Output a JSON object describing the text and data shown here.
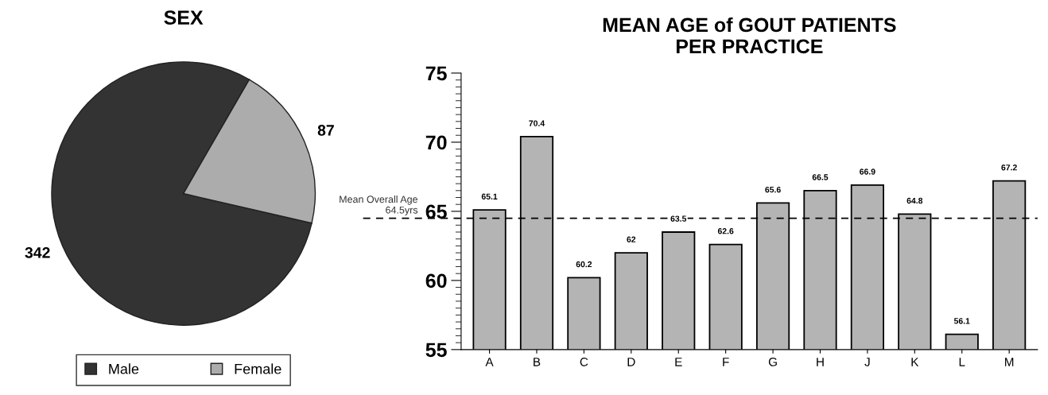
{
  "chart_data": [
    {
      "type": "pie",
      "title": "SEX",
      "categories": [
        "Male",
        "Female"
      ],
      "values": [
        342,
        87
      ],
      "colors": [
        "#333333",
        "#acacac"
      ],
      "data_labels": true,
      "legend": "bottom"
    },
    {
      "type": "bar",
      "title": "MEAN AGE of GOUT PATIENTS\nPER PRACTICE",
      "categories": [
        "A",
        "B",
        "C",
        "D",
        "E",
        "F",
        "G",
        "H",
        "J",
        "K",
        "L",
        "M"
      ],
      "values": [
        65.1,
        70.4,
        60.2,
        62,
        63.5,
        62.6,
        65.6,
        66.5,
        66.9,
        64.8,
        56.1,
        67.2
      ],
      "color": "#b4b4b4",
      "data_labels": true,
      "ylim": [
        55,
        75
      ],
      "yticks": [
        55,
        60,
        65,
        70,
        75
      ],
      "grid": false,
      "ref_lines": [
        {
          "axis": "y",
          "value": 64.5,
          "label": "Mean Overall Age\n64.5yrs",
          "color": "#000000",
          "line_style": "dashed"
        }
      ]
    }
  ]
}
